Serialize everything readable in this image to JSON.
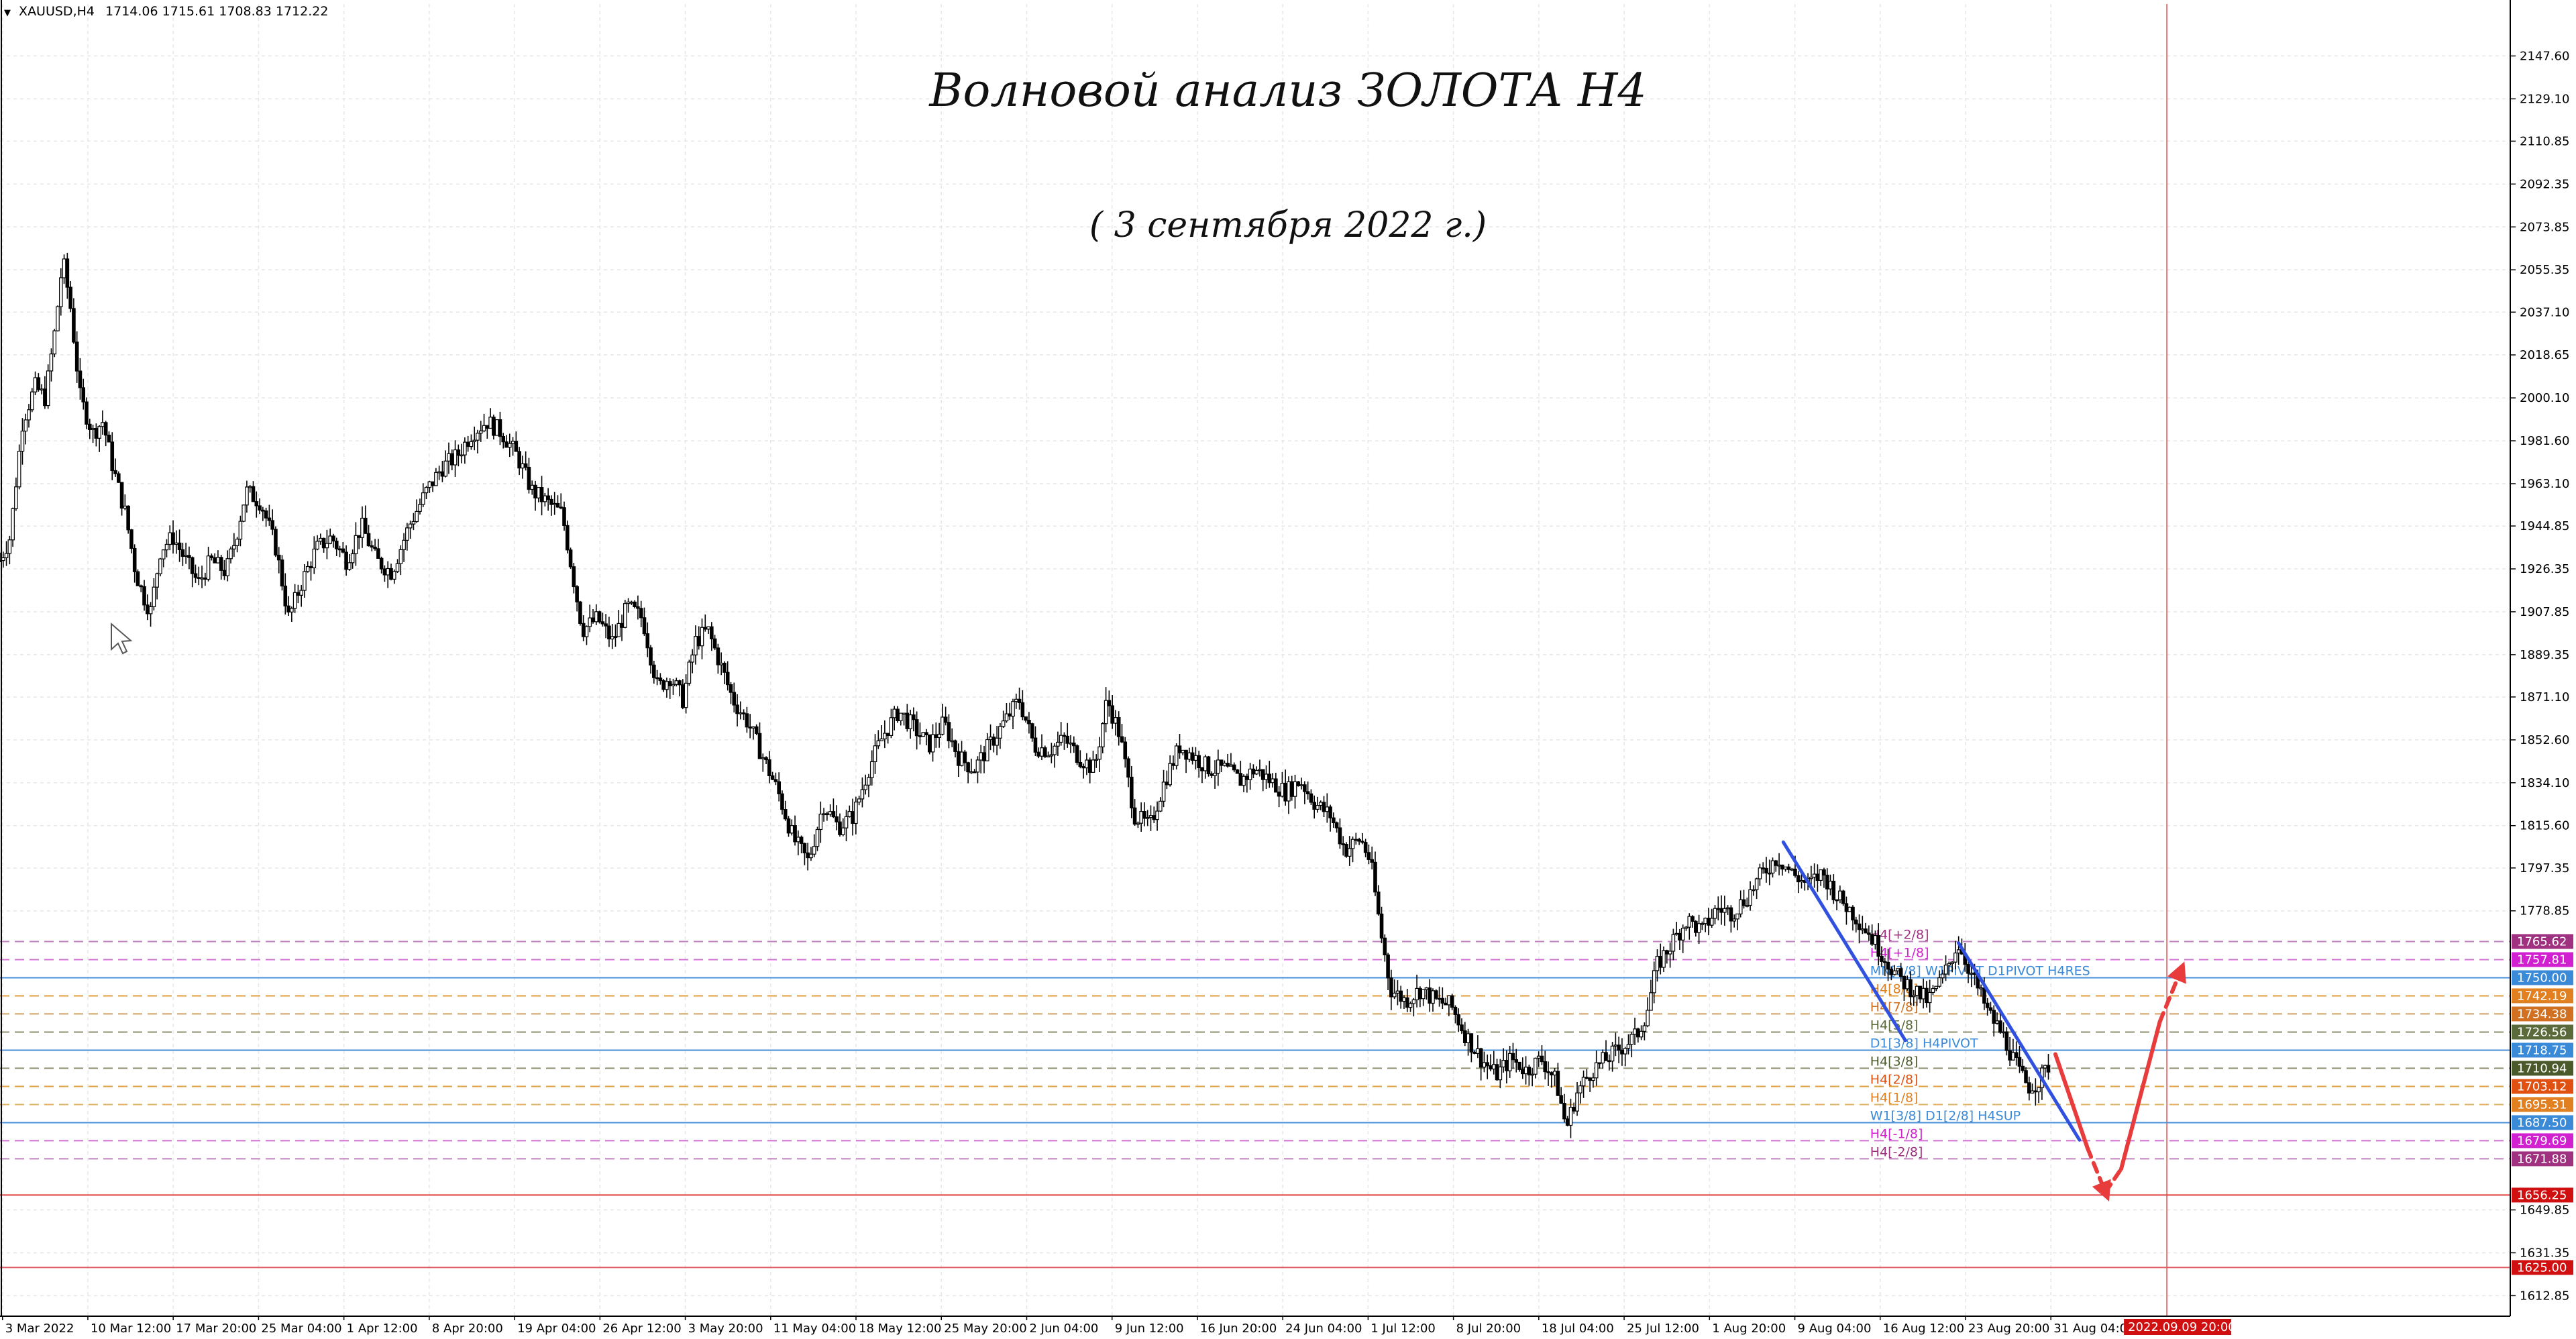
{
  "window": {
    "symbol": "XAUUSD,H4",
    "ohlc": "1714.06 1715.61 1708.83 1712.22"
  },
  "annotations": {
    "title": "Волновой анализ ЗОЛОТА H4",
    "subtitle": "( 3 сентября 2022 г.)"
  },
  "chart_data": {
    "type": "candlestick",
    "timeframe": "H4",
    "y_range": [
      1604,
      2170
    ],
    "grid": true,
    "y_ticks": [
      "2147.60",
      "2129.10",
      "2110.85",
      "2092.35",
      "2073.85",
      "2055.35",
      "2037.10",
      "2018.65",
      "2000.10",
      "1981.60",
      "1963.10",
      "1944.85",
      "1926.35",
      "1907.85",
      "1889.35",
      "1871.10",
      "1852.60",
      "1834.10",
      "1815.60",
      "1797.35",
      "1778.85",
      "1649.85",
      "1631.35",
      "1612.85"
    ],
    "x_ticks": [
      "3 Mar 2022",
      "10 Mar 12:00",
      "17 Mar 20:00",
      "25 Mar 04:00",
      "1 Apr 12:00",
      "8 Apr 20:00",
      "19 Apr 04:00",
      "26 Apr 12:00",
      "3 May 20:00",
      "11 May 04:00",
      "18 May 12:00",
      "25 May 20:00",
      "2 Jun 04:00",
      "9 Jun 12:00",
      "16 Jun 20:00",
      "24 Jun 04:00",
      "1 Jul 12:00",
      "8 Jul 20:00",
      "18 Jul 04:00",
      "25 Jul 12:00",
      "1 Aug 20:00",
      "9 Aug 04:00",
      "16 Aug 12:00",
      "23 Aug 20:00",
      "31 Aug 04:00"
    ],
    "current_time_label": "2022.09.09 20:00",
    "price_path": [
      [
        0.0,
        1930
      ],
      [
        0.004,
        1940
      ],
      [
        0.009,
        1990
      ],
      [
        0.014,
        2005
      ],
      [
        0.018,
        2000
      ],
      [
        0.022,
        2030
      ],
      [
        0.025,
        2060
      ],
      [
        0.028,
        2040
      ],
      [
        0.032,
        2000
      ],
      [
        0.037,
        1985
      ],
      [
        0.041,
        1990
      ],
      [
        0.045,
        1970
      ],
      [
        0.05,
        1950
      ],
      [
        0.054,
        1925
      ],
      [
        0.057,
        1915
      ],
      [
        0.06,
        1908
      ],
      [
        0.064,
        1935
      ],
      [
        0.069,
        1940
      ],
      [
        0.074,
        1930
      ],
      [
        0.079,
        1920
      ],
      [
        0.084,
        1930
      ],
      [
        0.09,
        1925
      ],
      [
        0.094,
        1940
      ],
      [
        0.098,
        1960
      ],
      [
        0.104,
        1955
      ],
      [
        0.11,
        1935
      ],
      [
        0.115,
        1905
      ],
      [
        0.12,
        1920
      ],
      [
        0.126,
        1935
      ],
      [
        0.132,
        1940
      ],
      [
        0.138,
        1930
      ],
      [
        0.144,
        1945
      ],
      [
        0.15,
        1930
      ],
      [
        0.156,
        1925
      ],
      [
        0.163,
        1945
      ],
      [
        0.17,
        1960
      ],
      [
        0.176,
        1970
      ],
      [
        0.182,
        1975
      ],
      [
        0.188,
        1985
      ],
      [
        0.194,
        1990
      ],
      [
        0.2,
        1985
      ],
      [
        0.206,
        1975
      ],
      [
        0.212,
        1960
      ],
      [
        0.218,
        1955
      ],
      [
        0.224,
        1950
      ],
      [
        0.228,
        1925
      ],
      [
        0.232,
        1900
      ],
      [
        0.238,
        1905
      ],
      [
        0.244,
        1895
      ],
      [
        0.25,
        1910
      ],
      [
        0.256,
        1905
      ],
      [
        0.262,
        1875
      ],
      [
        0.267,
        1880
      ],
      [
        0.272,
        1870
      ],
      [
        0.277,
        1895
      ],
      [
        0.282,
        1900
      ],
      [
        0.287,
        1885
      ],
      [
        0.292,
        1870
      ],
      [
        0.298,
        1860
      ],
      [
        0.304,
        1845
      ],
      [
        0.31,
        1830
      ],
      [
        0.316,
        1810
      ],
      [
        0.322,
        1800
      ],
      [
        0.328,
        1825
      ],
      [
        0.334,
        1815
      ],
      [
        0.34,
        1820
      ],
      [
        0.346,
        1840
      ],
      [
        0.352,
        1855
      ],
      [
        0.358,
        1865
      ],
      [
        0.364,
        1858
      ],
      [
        0.37,
        1850
      ],
      [
        0.376,
        1860
      ],
      [
        0.382,
        1845
      ],
      [
        0.388,
        1840
      ],
      [
        0.394,
        1850
      ],
      [
        0.4,
        1860
      ],
      [
        0.406,
        1870
      ],
      [
        0.412,
        1850
      ],
      [
        0.418,
        1848
      ],
      [
        0.424,
        1853
      ],
      [
        0.43,
        1845
      ],
      [
        0.436,
        1840
      ],
      [
        0.441,
        1870
      ],
      [
        0.446,
        1855
      ],
      [
        0.452,
        1820
      ],
      [
        0.458,
        1815
      ],
      [
        0.464,
        1835
      ],
      [
        0.47,
        1850
      ],
      [
        0.476,
        1845
      ],
      [
        0.482,
        1840
      ],
      [
        0.488,
        1840
      ],
      [
        0.494,
        1835
      ],
      [
        0.5,
        1840
      ],
      [
        0.506,
        1835
      ],
      [
        0.512,
        1830
      ],
      [
        0.518,
        1835
      ],
      [
        0.524,
        1825
      ],
      [
        0.53,
        1820
      ],
      [
        0.536,
        1805
      ],
      [
        0.542,
        1810
      ],
      [
        0.546,
        1800
      ],
      [
        0.55,
        1770
      ],
      [
        0.554,
        1745
      ],
      [
        0.56,
        1740
      ],
      [
        0.566,
        1745
      ],
      [
        0.572,
        1740
      ],
      [
        0.578,
        1738
      ],
      [
        0.584,
        1725
      ],
      [
        0.59,
        1715
      ],
      [
        0.596,
        1708
      ],
      [
        0.602,
        1715
      ],
      [
        0.608,
        1710
      ],
      [
        0.614,
        1715
      ],
      [
        0.62,
        1705
      ],
      [
        0.624,
        1685
      ],
      [
        0.628,
        1700
      ],
      [
        0.634,
        1710
      ],
      [
        0.64,
        1715
      ],
      [
        0.646,
        1720
      ],
      [
        0.652,
        1725
      ],
      [
        0.656,
        1735
      ],
      [
        0.66,
        1755
      ],
      [
        0.666,
        1765
      ],
      [
        0.672,
        1775
      ],
      [
        0.678,
        1770
      ],
      [
        0.684,
        1780
      ],
      [
        0.69,
        1778
      ],
      [
        0.696,
        1785
      ],
      [
        0.702,
        1795
      ],
      [
        0.708,
        1802
      ],
      [
        0.714,
        1795
      ],
      [
        0.72,
        1790
      ],
      [
        0.726,
        1795
      ],
      [
        0.732,
        1785
      ],
      [
        0.738,
        1778
      ],
      [
        0.744,
        1770
      ],
      [
        0.75,
        1760
      ],
      [
        0.756,
        1750
      ],
      [
        0.762,
        1745
      ],
      [
        0.768,
        1740
      ],
      [
        0.774,
        1750
      ],
      [
        0.78,
        1765
      ],
      [
        0.786,
        1750
      ],
      [
        0.792,
        1735
      ],
      [
        0.798,
        1725
      ],
      [
        0.804,
        1710
      ],
      [
        0.808,
        1703
      ],
      [
        0.812,
        1705
      ],
      [
        0.816,
        1712
      ]
    ],
    "levels": [
      {
        "price": 1765.62,
        "label": "H4[+2/8]",
        "style": "dashed",
        "color": "#c080c0",
        "tag_bg": "#a03080"
      },
      {
        "price": 1757.81,
        "label": "H4[+1/8]",
        "style": "dashed",
        "color": "#d070d0",
        "tag_bg": "#d020d0"
      },
      {
        "price": 1750.0,
        "label": "MN[3/8] W1PIVOT D1PIVOT H4RES",
        "style": "solid",
        "color": "#4a90d9",
        "tag_bg": "#3a8ad8"
      },
      {
        "price": 1742.19,
        "label": "H4[8/8]",
        "style": "dashed",
        "color": "#e0a040",
        "tag_bg": "#e08020"
      },
      {
        "price": 1734.38,
        "label": "H4[7/8]",
        "style": "dashed",
        "color": "#d0a060",
        "tag_bg": "#d07020"
      },
      {
        "price": 1726.56,
        "label": "H4[5/8]",
        "style": "dashed",
        "color": "#909070",
        "tag_bg": "#5a6a3a"
      },
      {
        "price": 1718.75,
        "label": "D1[3/8] H4PIVOT",
        "style": "solid",
        "color": "#4a90d9",
        "tag_bg": "#3a8ad8"
      },
      {
        "price": 1710.94,
        "label": "H4[3/8]",
        "style": "dashed",
        "color": "#909070",
        "tag_bg": "#4a5a2a"
      },
      {
        "price": 1703.12,
        "label": "H4[2/8]",
        "style": "dashed",
        "color": "#e0a040",
        "tag_bg": "#e05010"
      },
      {
        "price": 1695.31,
        "label": "H4[1/8]",
        "style": "dashed",
        "color": "#e0b060",
        "tag_bg": "#e08020"
      },
      {
        "price": 1687.5,
        "label": "W1[3/8] D1[2/8] H4SUP",
        "style": "solid",
        "color": "#4a90d9",
        "tag_bg": "#3a8ad8"
      },
      {
        "price": 1679.69,
        "label": "H4[-1/8]",
        "style": "dashed",
        "color": "#d070d0",
        "tag_bg": "#d020d0"
      },
      {
        "price": 1671.88,
        "label": "H4[-2/8]",
        "style": "dashed",
        "color": "#c080c0",
        "tag_bg": "#a03080"
      },
      {
        "price": 1656.25,
        "label": "",
        "style": "solid",
        "color": "#e04040",
        "tag_bg": "#d01010"
      },
      {
        "price": 1625.0,
        "label": "",
        "style": "solid",
        "color": "#e06060",
        "tag_bg": "#d01010"
      }
    ],
    "wave_lines": [
      {
        "color": "#3050e0",
        "points": [
          [
            0.7104,
            1808.5
          ],
          [
            0.759,
            1723.0
          ]
        ]
      },
      {
        "color": "#3050e0",
        "points": [
          [
            0.7802,
            1765.0
          ],
          [
            0.8284,
            1680.0
          ]
        ]
      }
    ],
    "forecast": [
      {
        "color": "#e83c3c",
        "style": "solid",
        "points": [
          [
            0.8188,
            1717.0
          ],
          [
            0.8316,
            1676.5
          ]
        ]
      },
      {
        "color": "#e83c3c",
        "style": "dashed",
        "points": [
          [
            0.8316,
            1676.5
          ],
          [
            0.8387,
            1657.5
          ]
        ]
      },
      {
        "color": "#e83c3c",
        "style": "dashed",
        "points": [
          [
            0.8387,
            1657.5
          ],
          [
            0.845,
            1667.5
          ]
        ]
      },
      {
        "color": "#e83c3c",
        "style": "solid",
        "points": [
          [
            0.845,
            1667.5
          ],
          [
            0.8604,
            1731.0
          ]
        ]
      },
      {
        "color": "#e83c3c",
        "style": "dashed",
        "points": [
          [
            0.8604,
            1731.0
          ],
          [
            0.8687,
            1753.0
          ]
        ]
      }
    ],
    "colors": {
      "grid": "#e6e6e6",
      "candle": "#000000",
      "axis_text": "#000000",
      "time_tag": "#d01010"
    }
  }
}
